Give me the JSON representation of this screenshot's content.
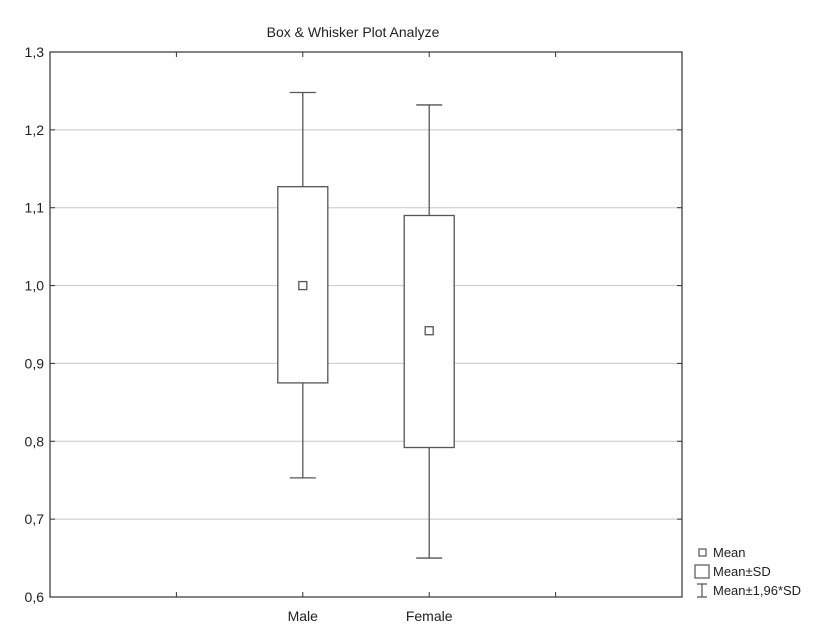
{
  "chart_data": {
    "type": "box",
    "title": "Box & Whisker Plot Analyze",
    "xlabel": "",
    "ylabel": "",
    "ylim": [
      0.6,
      1.3
    ],
    "yticks": [
      0.6,
      0.7,
      0.8,
      0.9,
      1.0,
      1.1,
      1.2,
      1.3
    ],
    "ytick_labels": [
      "0,6",
      "0,7",
      "0,8",
      "0,9",
      "1,0",
      "1,1",
      "1,2",
      "1,3"
    ],
    "categories": [
      "Male",
      "Female"
    ],
    "series": [
      {
        "category": "Male",
        "mean": 1.0,
        "sd_low": 0.875,
        "sd_high": 1.127,
        "whisker_low": 0.753,
        "whisker_high": 1.248
      },
      {
        "category": "Female",
        "mean": 0.942,
        "sd_low": 0.792,
        "sd_high": 1.09,
        "whisker_low": 0.65,
        "whisker_high": 1.232
      }
    ],
    "grid": true,
    "legend_position": "bottom-right outside",
    "legend": [
      {
        "key": "mean",
        "label": "Mean"
      },
      {
        "key": "box",
        "label": "Mean±SD"
      },
      {
        "key": "whisker",
        "label": "Mean±1,96*SD"
      }
    ],
    "colors": {
      "grid": "#c8c8c8",
      "stroke": "#555555",
      "frame": "#333333"
    }
  }
}
